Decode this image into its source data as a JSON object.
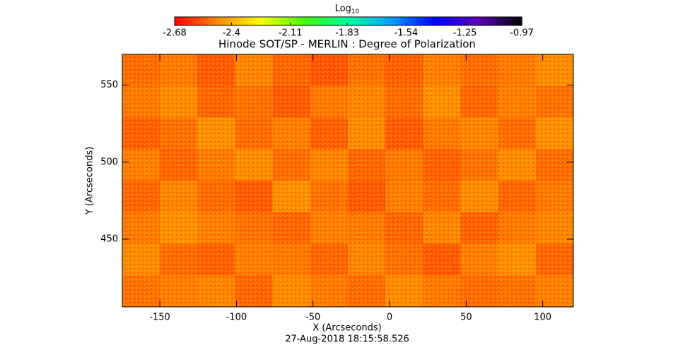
{
  "chart_data": {
    "type": "heatmap",
    "title": "Hinode SOT/SP - MERLIN : Degree of Polarization",
    "x_label": "X (Arcseconds)",
    "y_label": "Y (Arcseconds)",
    "footer": "27-Aug-2018 18:15:58.526",
    "colorbar_label": "Log",
    "colorbar_label_sub": "10",
    "clim": [
      -2.68,
      -0.97
    ],
    "colorbar_ticks": [
      -2.68,
      -2.4,
      -2.11,
      -1.83,
      -1.54,
      -1.25,
      -0.97
    ],
    "colormap": [
      "#ff0000",
      "#ff8c00",
      "#ffff00",
      "#40ff00",
      "#00ffa0",
      "#00a0ff",
      "#0000ff",
      "#6000c0",
      "#000000"
    ],
    "xlim": [
      -174.5,
      120
    ],
    "ylim": [
      406,
      570
    ],
    "xticks": [
      -150,
      -100,
      -50,
      0,
      50,
      100
    ],
    "yticks": [
      450,
      500,
      550
    ],
    "z": [
      [
        -2.52,
        -2.5,
        -2.55,
        -2.48,
        -2.53,
        -2.56,
        -2.51,
        -2.54,
        -2.49,
        -2.52,
        -2.5,
        -2.47
      ],
      [
        -2.5,
        -2.47,
        -2.53,
        -2.51,
        -2.55,
        -2.5,
        -2.48,
        -2.52,
        -2.46,
        -2.53,
        -2.49,
        -2.51
      ],
      [
        -2.54,
        -2.51,
        -2.46,
        -2.52,
        -2.49,
        -2.54,
        -2.47,
        -2.55,
        -2.5,
        -2.48,
        -2.52,
        -2.46
      ],
      [
        -2.49,
        -2.53,
        -2.5,
        -2.47,
        -2.52,
        -2.48,
        -2.53,
        -2.5,
        -2.54,
        -2.51,
        -2.47,
        -2.52
      ],
      [
        -2.53,
        -2.48,
        -2.52,
        -2.55,
        -2.46,
        -2.51,
        -2.55,
        -2.49,
        -2.52,
        -2.47,
        -2.53,
        -2.5
      ],
      [
        -2.5,
        -2.46,
        -2.49,
        -2.51,
        -2.53,
        -2.49,
        -2.5,
        -2.53,
        -2.48,
        -2.54,
        -2.5,
        -2.48
      ],
      [
        -2.47,
        -2.52,
        -2.54,
        -2.49,
        -2.5,
        -2.53,
        -2.48,
        -2.51,
        -2.55,
        -2.49,
        -2.46,
        -2.53
      ],
      [
        -2.51,
        -2.49,
        -2.48,
        -2.53,
        -2.47,
        -2.5,
        -2.52,
        -2.47,
        -2.5,
        -2.52,
        -2.51,
        -2.49
      ]
    ]
  }
}
